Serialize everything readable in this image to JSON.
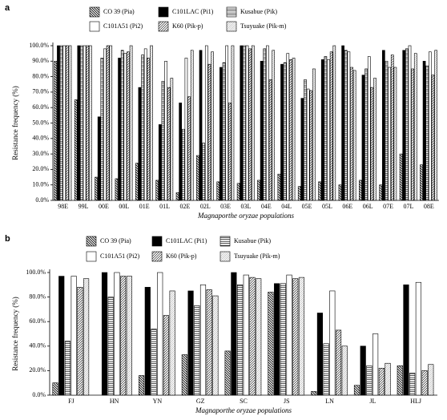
{
  "chart_data": [
    {
      "type": "bar",
      "panel": "a",
      "y_label": "Resistance frequency (%)",
      "x_label": "Magnaporthe oryzae populations",
      "categories": [
        "98E",
        "99L",
        "00E",
        "00L",
        "01E",
        "01L",
        "02E",
        "02L",
        "03E",
        "03L",
        "04E",
        "04L",
        "05E",
        "05L",
        "06E",
        "06L",
        "07E",
        "07L",
        "08E"
      ],
      "series": [
        {
          "name": "CO 39 (Pia)",
          "color": "#ffffff",
          "pattern": "back-diagonal",
          "values": [
            90,
            65,
            15,
            14,
            24,
            13,
            5,
            29,
            12,
            11,
            13,
            17,
            9,
            12,
            10,
            13,
            10,
            30,
            23
          ]
        },
        {
          "name": "C101LAC (Pi1)",
          "color": "#000000",
          "pattern": "solid",
          "values": [
            100,
            100,
            54,
            92,
            73,
            49,
            63,
            97,
            86,
            100,
            90,
            88,
            66,
            91,
            100,
            81,
            97,
            97,
            90
          ]
        },
        {
          "name": "Kusabue (Pik)",
          "color": "#ffffff",
          "pattern": "horizontal",
          "values": [
            100,
            100,
            92,
            97,
            94,
            77,
            46,
            37,
            89,
            100,
            98,
            89,
            78,
            93,
            97,
            85,
            90,
            98,
            87
          ]
        },
        {
          "name": "C101A51 (Pi2)",
          "color": "#ffffff",
          "pattern": "solid",
          "values": [
            100,
            100,
            98,
            95,
            98,
            90,
            92,
            100,
            100,
            100,
            100,
            95,
            72,
            91,
            96,
            93,
            86,
            100,
            96
          ]
        },
        {
          "name": "K60 (Pik-p)",
          "color": "#ffffff",
          "pattern": "diagonal",
          "values": [
            100,
            100,
            100,
            96,
            92,
            73,
            67,
            88,
            63,
            98,
            78,
            91,
            71,
            96,
            86,
            73,
            94,
            85,
            81
          ]
        },
        {
          "name": "Tsuyuake (Pik-m)",
          "color": "#ffffff",
          "pattern": "fine-diagonal",
          "values": [
            100,
            100,
            100,
            100,
            100,
            79,
            97,
            96,
            100,
            100,
            97,
            92,
            85,
            100,
            84,
            79,
            86,
            95,
            97
          ]
        }
      ],
      "ylim": [
        0,
        100
      ],
      "yticks": [
        {
          "value": 0,
          "label": "0.0%"
        },
        {
          "value": 10,
          "label": "10.0%"
        },
        {
          "value": 20,
          "label": "20.0%"
        },
        {
          "value": 30,
          "label": "30.0%"
        },
        {
          "value": 40,
          "label": "40.0%"
        },
        {
          "value": 50,
          "label": "50.0%"
        },
        {
          "value": 60,
          "label": "60.0%"
        },
        {
          "value": 70,
          "label": "70.0%"
        },
        {
          "value": 80,
          "label": "80.0%"
        },
        {
          "value": 90,
          "label": "90.0%"
        },
        {
          "value": 100,
          "label": "100.0%"
        }
      ]
    },
    {
      "type": "bar",
      "panel": "b",
      "y_label": "Resistance frequency (%)",
      "x_label": "Magnaporthe oryzae populations",
      "categories": [
        "FJ",
        "HN",
        "YN",
        "GZ",
        "SC",
        "JS",
        "LN",
        "JL",
        "HLJ"
      ],
      "series": [
        {
          "name": "CO 39 (Pia)",
          "color": "#ffffff",
          "pattern": "back-diagonal",
          "values": [
            10,
            0,
            16,
            33,
            36,
            84,
            3,
            8,
            24
          ]
        },
        {
          "name": "C101LAC (Pi1)",
          "color": "#000000",
          "pattern": "solid",
          "values": [
            97,
            100,
            88,
            85,
            100,
            91,
            67,
            40,
            90
          ]
        },
        {
          "name": "Kusabue (Pik)",
          "color": "#ffffff",
          "pattern": "horizontal",
          "values": [
            44,
            80,
            54,
            73,
            90,
            91,
            42,
            24,
            18
          ]
        },
        {
          "name": "C101A51 (Pi2)",
          "color": "#ffffff",
          "pattern": "solid",
          "values": [
            97,
            100,
            100,
            90,
            98,
            98,
            85,
            50,
            92
          ]
        },
        {
          "name": "K60 (Pik-p)",
          "color": "#ffffff",
          "pattern": "diagonal",
          "values": [
            88,
            97,
            65,
            86,
            96,
            95,
            53,
            22,
            20
          ]
        },
        {
          "name": "Tsuyuake (Pik-m)",
          "color": "#ffffff",
          "pattern": "fine-diagonal",
          "values": [
            95,
            97,
            85,
            81,
            95,
            96,
            40,
            26,
            25
          ]
        }
      ],
      "ylim": [
        0,
        100
      ],
      "yticks": [
        {
          "value": 0,
          "label": "0.0%"
        },
        {
          "value": 20,
          "label": "20.0%"
        },
        {
          "value": 40,
          "label": "40.0%"
        },
        {
          "value": 60,
          "label": "60.0%"
        },
        {
          "value": 80,
          "label": "80.0%"
        },
        {
          "value": 100,
          "label": "100.0%"
        }
      ]
    }
  ]
}
